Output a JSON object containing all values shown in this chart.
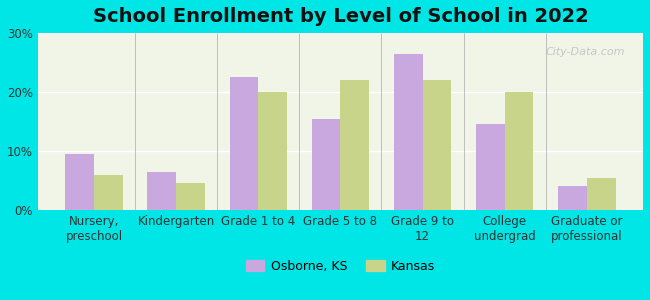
{
  "title": "School Enrollment by Level of School in 2022",
  "categories": [
    "Nursery,\npreschool",
    "Kindergarten",
    "Grade 1 to 4",
    "Grade 5 to 8",
    "Grade 9 to\n12",
    "College\nundergrad",
    "Graduate or\nprofessional"
  ],
  "osborne_values": [
    9.5,
    6.5,
    22.5,
    15.5,
    26.5,
    14.5,
    4.0
  ],
  "kansas_values": [
    6.0,
    4.5,
    20.0,
    22.0,
    22.0,
    20.0,
    5.5
  ],
  "osborne_color": "#c9a8e0",
  "kansas_color": "#c8d48a",
  "background_outer": "#00e5e5",
  "background_inner": "#f0f5e8",
  "ylim": [
    0,
    30
  ],
  "yticks": [
    0,
    10,
    20,
    30
  ],
  "ytick_labels": [
    "0%",
    "10%",
    "20%",
    "30%"
  ],
  "legend_labels": [
    "Osborne, KS",
    "Kansas"
  ],
  "watermark": "City-Data.com",
  "bar_width": 0.35,
  "title_fontsize": 14,
  "axis_fontsize": 8.5,
  "legend_fontsize": 9
}
